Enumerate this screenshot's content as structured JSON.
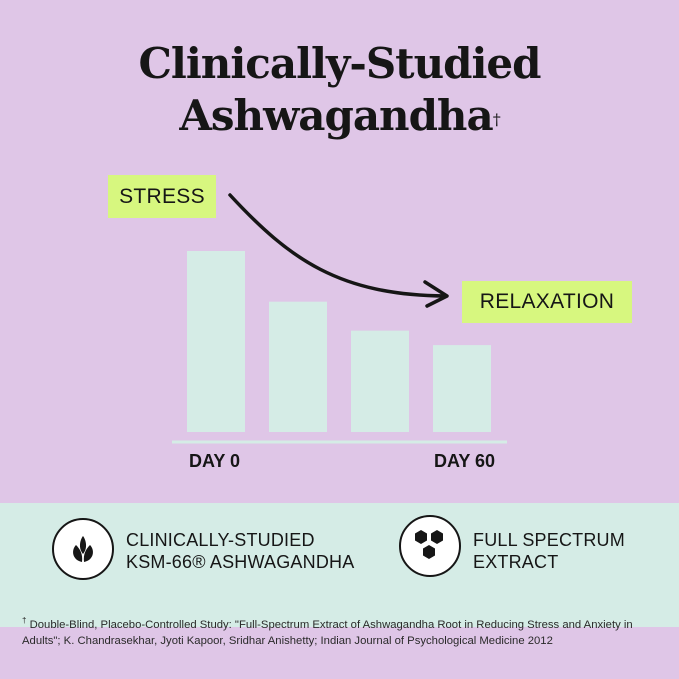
{
  "title": {
    "line1": "Clinically-Studied",
    "line2": "Ashwagandha",
    "dagger": "†"
  },
  "chart_data": {
    "type": "bar",
    "categories": [
      "DAY 0",
      "",
      "",
      "DAY 60"
    ],
    "values": [
      100,
      72,
      56,
      48
    ],
    "x_tick_labels": [
      "DAY 0",
      "DAY 60"
    ],
    "annotations": [
      "STRESS",
      "RELAXATION"
    ],
    "grid": false,
    "colors": {
      "bar": "#d5ece6",
      "tag": "#d7f77f",
      "background": "#dfc6e7"
    }
  },
  "features": [
    {
      "icon": "leaves-icon",
      "line1": "CLINICALLY-STUDIED",
      "line2": "KSM-66® ASHWAGANDHA"
    },
    {
      "icon": "hexagons-icon",
      "line1": "FULL SPECTRUM",
      "line2": "EXTRACT"
    }
  ],
  "footnote": {
    "mark": "†",
    "text": "Double-Blind, Placebo-Controlled Study: \"Full-Spectrum Extract of Ashwagandha Root in Reducing Stress and Anxiety in Adults\"; K. Chandrasekhar, Jyoti Kapoor, Sridhar Anishetty; Indian Journal of Psychological Medicine 2012"
  }
}
